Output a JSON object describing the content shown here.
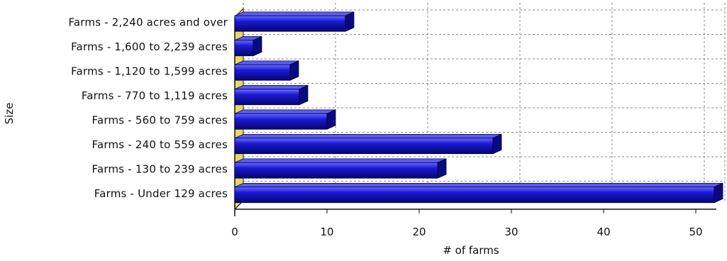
{
  "chart_data": {
    "type": "bar",
    "orientation": "horizontal",
    "categories": [
      "Farms - 2,240 acres and over",
      "Farms - 1,600 to 2,239 acres",
      "Farms - 1,120 to 1,599 acres",
      "Farms - 770 to 1,119 acres",
      "Farms - 560 to 759 acres",
      "Farms - 240 to 559 acres",
      "Farms - 130 to 239 acres",
      "Farms - Under 129 acres"
    ],
    "values": [
      12,
      2,
      6,
      7,
      10,
      28,
      22,
      52
    ],
    "title": "",
    "xlabel": "# of farms",
    "ylabel": "Size",
    "xlim": [
      0,
      52
    ],
    "xticks": [
      0,
      10,
      20,
      30,
      40,
      50
    ],
    "grid": true,
    "bar_color": "#1a1ad6",
    "bar_dark": "#0a0a80",
    "floor_color": "#e8d860"
  }
}
